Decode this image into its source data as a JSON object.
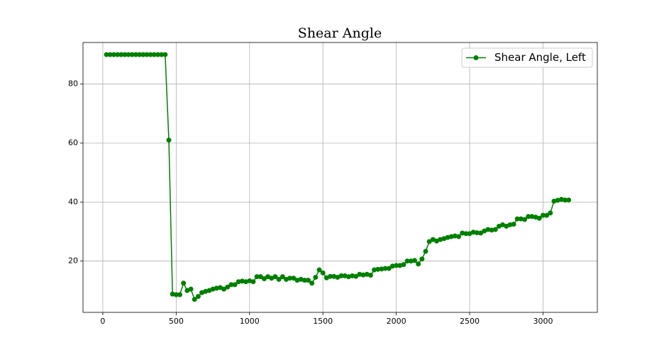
{
  "chart_data": {
    "type": "line",
    "title": "Shear Angle",
    "x": [
      25,
      50,
      75,
      100,
      125,
      150,
      175,
      200,
      225,
      250,
      275,
      300,
      325,
      350,
      375,
      400,
      425,
      450,
      475,
      500,
      525,
      550,
      575,
      600,
      625,
      650,
      675,
      700,
      725,
      750,
      775,
      800,
      825,
      850,
      875,
      900,
      925,
      950,
      975,
      1000,
      1025,
      1050,
      1075,
      1100,
      1125,
      1150,
      1175,
      1200,
      1225,
      1250,
      1275,
      1300,
      1325,
      1350,
      1375,
      1400,
      1425,
      1450,
      1475,
      1500,
      1525,
      1550,
      1575,
      1600,
      1625,
      1650,
      1675,
      1700,
      1725,
      1750,
      1775,
      1800,
      1825,
      1850,
      1875,
      1900,
      1925,
      1950,
      1975,
      2000,
      2025,
      2050,
      2075,
      2100,
      2125,
      2150,
      2175,
      2200,
      2225,
      2250,
      2275,
      2300,
      2325,
      2350,
      2375,
      2400,
      2425,
      2450,
      2475,
      2500,
      2525,
      2550,
      2575,
      2600,
      2625,
      2650,
      2675,
      2700,
      2725,
      2750,
      2775,
      2800,
      2825,
      2850,
      2875,
      2900,
      2925,
      2950,
      2975,
      3000,
      3025,
      3050,
      3075,
      3100,
      3125,
      3150,
      3175
    ],
    "series": [
      {
        "name": "Shear Angle, Left",
        "color": "#008000",
        "values": [
          90,
          90,
          90,
          90,
          90,
          90,
          90,
          90,
          90,
          90,
          90,
          90,
          90,
          90,
          90,
          90,
          90,
          61,
          8.8,
          8.6,
          8.6,
          12.5,
          10,
          10.5,
          7,
          8,
          9.3,
          9.7,
          10,
          10.5,
          10.8,
          11,
          10.5,
          11.2,
          12,
          12,
          13,
          13.2,
          13,
          13.3,
          13,
          14.7,
          14.7,
          14,
          14.7,
          14.2,
          14.7,
          13.8,
          14.7,
          13.8,
          14.2,
          14.2,
          13.5,
          13.8,
          13.5,
          13.5,
          12.5,
          14.5,
          17,
          16,
          14.3,
          14.8,
          14.8,
          14.5,
          15,
          15,
          14.7,
          15,
          14.8,
          15.5,
          15.3,
          15.5,
          15.2,
          17,
          17.2,
          17.3,
          17.5,
          17.5,
          18.3,
          18.5,
          18.5,
          18.8,
          20,
          20,
          20.2,
          19,
          20.7,
          23.3,
          26.6,
          27.3,
          26.8,
          27.3,
          27.6,
          28,
          28.3,
          28.5,
          28.3,
          29.5,
          29.3,
          29.3,
          29.8,
          29.6,
          29.5,
          30.2,
          30.7,
          30.5,
          30.7,
          31.8,
          32.3,
          31.8,
          32.3,
          32.5,
          34.3,
          34.3,
          34.1,
          35.1,
          35.1,
          34.9,
          34.5,
          35.5,
          35.5,
          36.3,
          40.3,
          40.6,
          40.9,
          40.7,
          40.7
        ]
      }
    ],
    "xlim": [
      -135,
      3370
    ],
    "ylim": [
      2.6,
      94.1
    ],
    "xticks": [
      0,
      500,
      1000,
      1500,
      2000,
      2500,
      3000
    ],
    "yticks": [
      20,
      40,
      60,
      80
    ],
    "grid": true,
    "legend": "upper right"
  }
}
